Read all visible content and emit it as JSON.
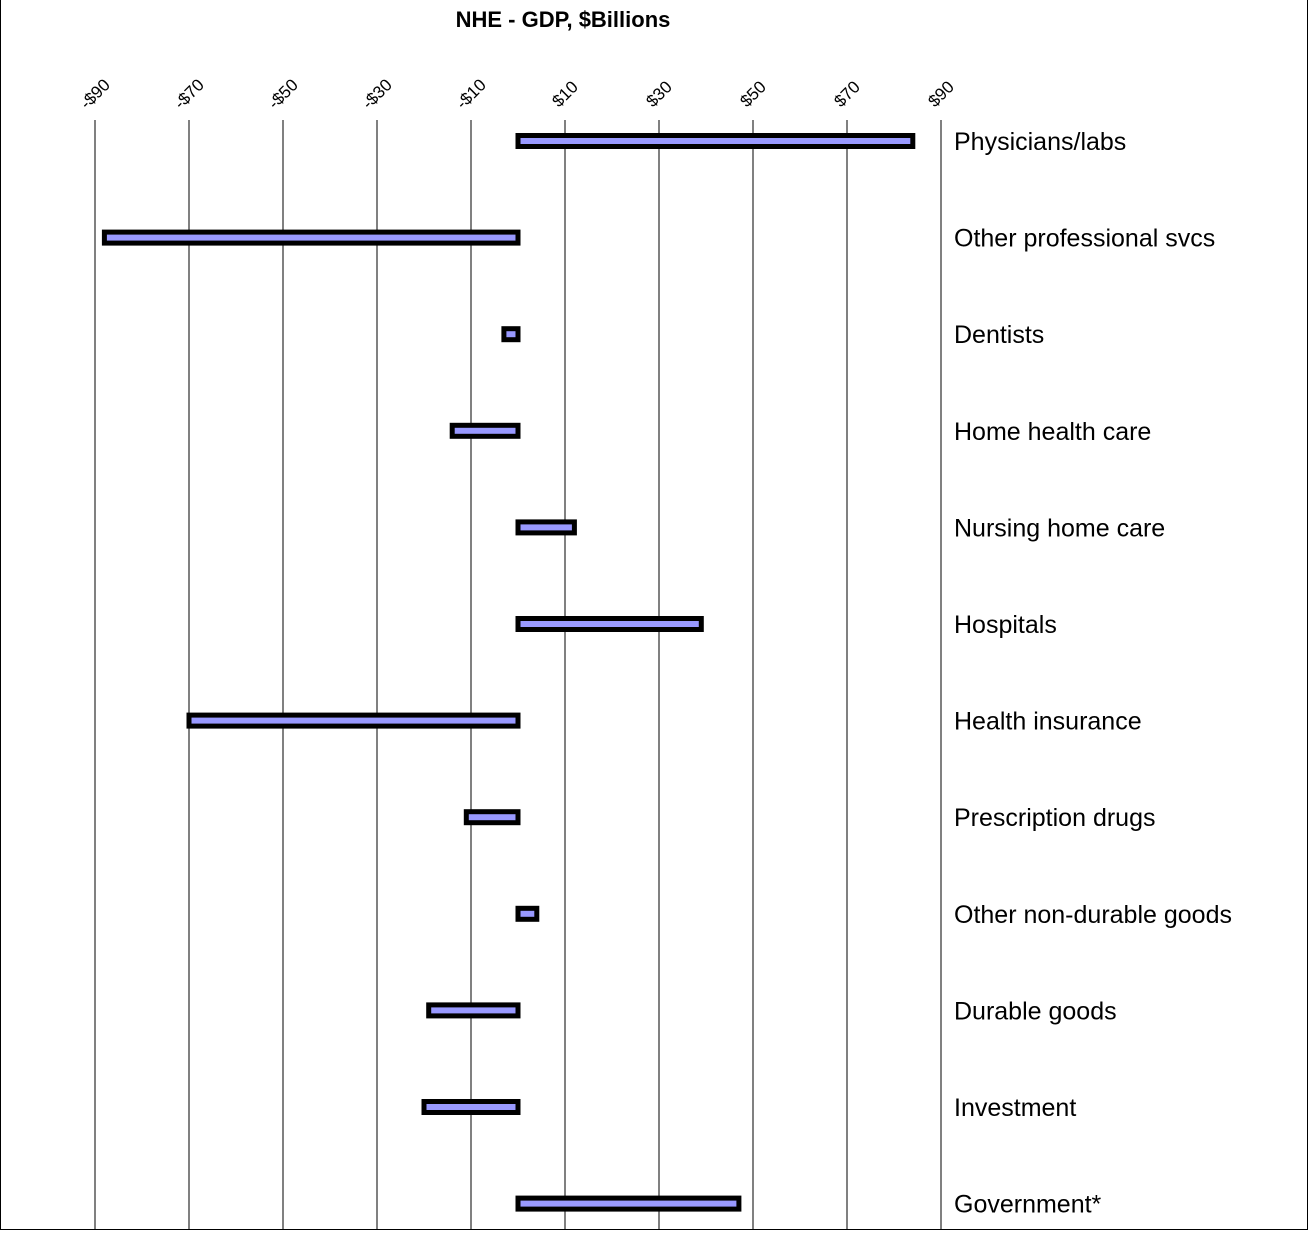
{
  "chart_data": {
    "type": "bar",
    "orientation": "horizontal",
    "title": "NHE - GDP, $Billions",
    "xlabel": "",
    "ylabel": "",
    "xlim": [
      -99,
      90
    ],
    "x_ticks": [
      -90,
      -70,
      -50,
      -30,
      -10,
      10,
      30,
      50,
      70,
      90
    ],
    "x_tick_labels": [
      "-$90",
      "-$70",
      "-$50",
      "-$30",
      "-$10",
      "$10",
      "$30",
      "$50",
      "$70",
      "$90"
    ],
    "grid": "vertical",
    "categories": [
      "Physicians/labs",
      "Other professional svcs",
      "Dentists",
      "Home health care",
      "Nursing home care",
      "Hospitals",
      "Health insurance",
      "Prescription drugs",
      "Other non-durable goods",
      "Durable goods",
      "Investment",
      "Government*"
    ],
    "values": [
      84,
      -88,
      -3,
      -14,
      12,
      39,
      -70,
      -11,
      4,
      -19,
      -20,
      47
    ],
    "colors": {
      "bar_fill": "#9999ff",
      "bar_border": "#000000",
      "grid": "#000000"
    }
  }
}
